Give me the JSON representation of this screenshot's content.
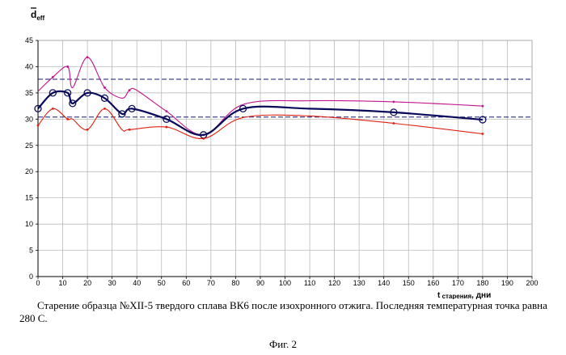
{
  "chart_data": {
    "type": "line",
    "ylabel_main": "d",
    "ylabel_sub": "eff",
    "xlabel_main": "t",
    "xlabel_sub": " старения",
    "xlabel_unit": ", дни",
    "xlim": [
      0,
      200
    ],
    "ylim": [
      0,
      45
    ],
    "x_ticks": [
      0,
      10,
      20,
      30,
      40,
      50,
      60,
      70,
      80,
      90,
      100,
      110,
      120,
      130,
      140,
      150,
      160,
      170,
      180,
      190,
      200
    ],
    "y_ticks": [
      0,
      5,
      10,
      15,
      20,
      25,
      30,
      35,
      40,
      45
    ],
    "grid": true,
    "reference_lines": [
      37.6,
      30.4
    ],
    "series": [
      {
        "color": "#c0148c",
        "points": [
          [
            0,
            35.3
          ],
          [
            6,
            38
          ],
          [
            12,
            40
          ],
          [
            14,
            36
          ],
          [
            20,
            41.8
          ],
          [
            27,
            36
          ],
          [
            34,
            34
          ],
          [
            37,
            35.5
          ],
          [
            40,
            35.5
          ],
          [
            52,
            31.5
          ],
          [
            67,
            27
          ],
          [
            83,
            32.8
          ],
          [
            110,
            33.5
          ],
          [
            144,
            33.3
          ],
          [
            180,
            32.5
          ]
        ],
        "markers": [
          [
            6,
            38
          ],
          [
            12,
            40
          ],
          [
            20,
            41.8
          ],
          [
            27,
            36
          ],
          [
            37,
            35.5
          ],
          [
            52,
            31.5
          ],
          [
            67,
            27
          ],
          [
            144,
            33.3
          ],
          [
            180,
            32.5
          ]
        ]
      },
      {
        "color": "#0a0a5a",
        "points": [
          [
            0,
            32
          ],
          [
            6,
            35
          ],
          [
            12,
            35
          ],
          [
            14,
            33
          ],
          [
            20,
            35
          ],
          [
            27,
            34
          ],
          [
            34,
            31
          ],
          [
            38,
            32
          ],
          [
            52,
            30
          ],
          [
            67,
            27
          ],
          [
            83,
            32
          ],
          [
            110,
            32
          ],
          [
            144,
            31.3
          ],
          [
            180,
            29.9
          ]
        ],
        "markers": [
          [
            0,
            32
          ],
          [
            6,
            35
          ],
          [
            12,
            35
          ],
          [
            14,
            33
          ],
          [
            20,
            35
          ],
          [
            27,
            34
          ],
          [
            34,
            31
          ],
          [
            38,
            32
          ],
          [
            52,
            30
          ],
          [
            67,
            27
          ],
          [
            83,
            32
          ],
          [
            144,
            31.3
          ],
          [
            180,
            29.9
          ]
        ]
      },
      {
        "color": "#e02010",
        "points": [
          [
            0,
            28.8
          ],
          [
            6,
            32
          ],
          [
            12,
            30
          ],
          [
            14,
            30
          ],
          [
            20,
            28
          ],
          [
            27,
            32
          ],
          [
            34,
            28
          ],
          [
            37,
            28
          ],
          [
            52,
            28.5
          ],
          [
            67,
            26.3
          ],
          [
            83,
            30.3
          ],
          [
            110,
            30.6
          ],
          [
            144,
            29.2
          ],
          [
            180,
            27.2
          ]
        ],
        "markers": [
          [
            0,
            28.8
          ],
          [
            6,
            32
          ],
          [
            12,
            30
          ],
          [
            20,
            28
          ],
          [
            27,
            32
          ],
          [
            37,
            28
          ],
          [
            52,
            28.5
          ],
          [
            67,
            26.3
          ],
          [
            144,
            29.2
          ],
          [
            180,
            27.2
          ]
        ]
      }
    ]
  },
  "caption": {
    "text": "Старение образца №XII-5 твердого сплава  ВК6 после изохронного отжига. Последняя температурная точка равна 280 С.",
    "figure": "Фиг. 2"
  }
}
